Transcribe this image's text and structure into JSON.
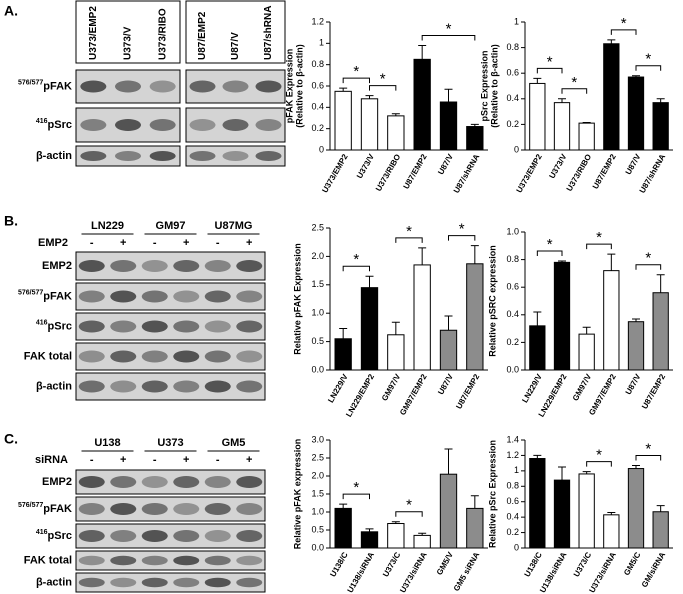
{
  "blots": [
    {
      "label": "A.",
      "lanes": [
        "U373/EMP2",
        "U373/V",
        "U373/RIBO",
        "U87/EMP2",
        "U87/V",
        "U87/shRNA"
      ],
      "rows": [
        {
          "sup": "576/577",
          "text": "pFAK"
        },
        {
          "sup": "416",
          "text": "pSrc"
        },
        {
          "text": "β-actin"
        }
      ]
    },
    {
      "label": "B.",
      "groups": [
        "LN229",
        "GM97",
        "U87MG"
      ],
      "treatment": "EMP2",
      "signs": [
        "-",
        "+",
        "-",
        "+",
        "-",
        "+"
      ],
      "rows": [
        {
          "text": "EMP2"
        },
        {
          "sup": "576/577",
          "text": "pFAK"
        },
        {
          "sup": "416",
          "text": "pSrc"
        },
        {
          "text": "FAK total"
        },
        {
          "text": "β-actin"
        }
      ]
    },
    {
      "label": "C.",
      "groups": [
        "U138",
        "U373",
        "GM5"
      ],
      "treatment": "siRNA",
      "signs": [
        "-",
        "+",
        "-",
        "+",
        "-",
        "+"
      ],
      "rows": [
        {
          "text": "EMP2"
        },
        {
          "sup": "576/577",
          "text": "pFAK"
        },
        {
          "sup": "416",
          "text": "pSrc"
        },
        {
          "text": "FAK total"
        },
        {
          "text": "β-actin"
        }
      ]
    }
  ],
  "chart_data": [
    {
      "type": "bar",
      "y_label": [
        "pFAK Expression",
        "(Relative to β-actin)"
      ],
      "categories": [
        "U373/EMP2",
        "U373/V",
        "U373/RIBO",
        "U87/EMP2",
        "U87/V",
        "U87/shRNA"
      ],
      "values": [
        0.55,
        0.48,
        0.32,
        0.85,
        0.45,
        0.22
      ],
      "errors": [
        0.03,
        0.03,
        0.02,
        0.13,
        0.12,
        0.02
      ],
      "colors": [
        "#ffffff",
        "#ffffff",
        "#ffffff",
        "#000000",
        "#000000",
        "#000000"
      ],
      "ylim": [
        0,
        1.2
      ],
      "yticks": [
        0,
        0.2,
        0.4,
        0.6,
        0.8,
        1,
        1.2
      ],
      "brackets": [
        {
          "between": [
            "U373/EMP2",
            "U373/V"
          ],
          "label": "*"
        },
        {
          "between": [
            "U373/V",
            "U373/RIBO"
          ],
          "label": "*"
        },
        {
          "between": [
            "U87/EMP2",
            "U87/shRNA"
          ],
          "label": "*"
        }
      ]
    },
    {
      "type": "bar",
      "y_label": [
        "pSrc Expression",
        "(Relative to β-actin)"
      ],
      "categories": [
        "U373/EMP2",
        "U373/V",
        "U373/RIBO",
        "U87/EMP2",
        "U87/V",
        "U87/shRNA"
      ],
      "values": [
        0.52,
        0.37,
        0.21,
        0.83,
        0.57,
        0.37
      ],
      "errors": [
        0.04,
        0.03,
        0.005,
        0.03,
        0.01,
        0.03
      ],
      "colors": [
        "#ffffff",
        "#ffffff",
        "#ffffff",
        "#000000",
        "#000000",
        "#000000"
      ],
      "ylim": [
        0,
        1
      ],
      "yticks": [
        0,
        0.2,
        0.4,
        0.6,
        0.8,
        1
      ],
      "brackets": [
        {
          "between": [
            "U373/EMP2",
            "U373/V"
          ],
          "label": "*"
        },
        {
          "between": [
            "U373/V",
            "U373/RIBO"
          ],
          "label": "*"
        },
        {
          "between": [
            "U87/EMP2",
            "U87/V"
          ],
          "label": "*"
        },
        {
          "between": [
            "U87/V",
            "U87/shRNA"
          ],
          "label": "*"
        }
      ]
    },
    {
      "type": "bar",
      "y_label": [
        "Relative pFAK Expression"
      ],
      "categories": [
        "LN229/V",
        "LN229/EMP2",
        "GM97/V",
        "GM97/EMP2",
        "U87/V",
        "U87/EMP2"
      ],
      "values": [
        0.55,
        1.45,
        0.62,
        1.85,
        0.7,
        1.87
      ],
      "errors": [
        0.18,
        0.2,
        0.22,
        0.3,
        0.25,
        0.32
      ],
      "colors": [
        "#000000",
        "#000000",
        "#ffffff",
        "#ffffff",
        "#8c8c8c",
        "#8c8c8c"
      ],
      "ylim": [
        0,
        2.5
      ],
      "yticks": [
        {
          "value": 0,
          "label": "0.0"
        },
        0.5,
        {
          "value": 1,
          "label": "1.0"
        },
        1.5,
        {
          "value": 2,
          "label": "2.0"
        },
        2.5
      ],
      "brackets": [
        {
          "between": [
            "LN229/V",
            "LN229/EMP2"
          ],
          "label": "*"
        },
        {
          "between": [
            "GM97/V",
            "GM97/EMP2"
          ],
          "label": "*"
        },
        {
          "between": [
            "U87/V",
            "U87/EMP2"
          ],
          "label": "*"
        }
      ]
    },
    {
      "type": "bar",
      "y_label": [
        "Relative pSRC expression"
      ],
      "categories": [
        "LN229/V",
        "LN229/EMP2",
        "GM97/V",
        "GM97/EMP2",
        "U87/V",
        "U87/EMP2"
      ],
      "values": [
        0.32,
        0.78,
        0.26,
        0.72,
        0.35,
        0.56
      ],
      "errors": [
        0.1,
        0.01,
        0.05,
        0.12,
        0.02,
        0.13
      ],
      "colors": [
        "#000000",
        "#000000",
        "#ffffff",
        "#ffffff",
        "#8c8c8c",
        "#8c8c8c"
      ],
      "ylim": [
        0,
        1
      ],
      "yticks": [
        {
          "value": 0,
          "label": "0.0"
        },
        0.2,
        0.4,
        0.6,
        0.8,
        {
          "value": 1,
          "label": "1.0"
        }
      ],
      "brackets": [
        {
          "between": [
            "LN229/V",
            "LN229/EMP2"
          ],
          "label": "*"
        },
        {
          "between": [
            "GM97/V",
            "GM97/EMP2"
          ],
          "label": "*"
        },
        {
          "between": [
            "U87/V",
            "U87/EMP2"
          ],
          "label": "*"
        }
      ]
    },
    {
      "type": "bar",
      "y_label": [
        "Relative pFAK expression"
      ],
      "categories": [
        "U138/C",
        "U138/siRNA",
        "U373/C",
        "U373/siRNA",
        "GM5/V",
        "GM5 siRNA"
      ],
      "values": [
        1.1,
        0.45,
        0.68,
        0.35,
        2.05,
        1.1
      ],
      "errors": [
        0.12,
        0.08,
        0.05,
        0.06,
        0.7,
        0.35
      ],
      "colors": [
        "#000000",
        "#000000",
        "#ffffff",
        "#ffffff",
        "#8c8c8c",
        "#8c8c8c"
      ],
      "ylim": [
        0,
        3
      ],
      "yticks": [
        {
          "value": 0,
          "label": "0.0"
        },
        0.5,
        {
          "value": 1,
          "label": "1.0"
        },
        1.5,
        {
          "value": 2,
          "label": "2.0"
        },
        2.5,
        {
          "value": 3,
          "label": "3.0"
        }
      ],
      "brackets": [
        {
          "between": [
            "U138/C",
            "U138/siRNA"
          ],
          "label": "*"
        },
        {
          "between": [
            "U373/C",
            "U373/siRNA"
          ],
          "label": "*"
        }
      ]
    },
    {
      "type": "bar",
      "y_label": [
        "Relative pSrc  Expression"
      ],
      "categories": [
        "U138/C",
        "U138/siRNA",
        "U373/C",
        "U373/siRNA",
        "GM5/C",
        "GM/siRNA"
      ],
      "values": [
        1.16,
        0.88,
        0.96,
        0.43,
        1.03,
        0.47
      ],
      "errors": [
        0.04,
        0.17,
        0.03,
        0.03,
        0.04,
        0.08
      ],
      "colors": [
        "#000000",
        "#000000",
        "#ffffff",
        "#ffffff",
        "#8c8c8c",
        "#8c8c8c"
      ],
      "ylim": [
        0,
        1.4
      ],
      "yticks": [
        0,
        0.2,
        0.4,
        0.6,
        0.8,
        1,
        1.2,
        1.4
      ],
      "brackets": [
        {
          "between": [
            "U373/C",
            "U373/siRNA"
          ],
          "label": "*"
        },
        {
          "between": [
            "GM5/C",
            "GM/siRNA"
          ],
          "label": "*"
        }
      ]
    }
  ]
}
